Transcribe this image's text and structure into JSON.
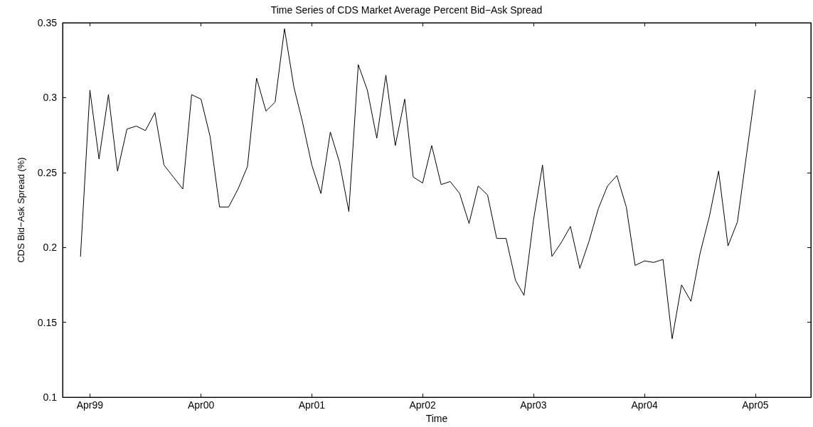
{
  "chart_data": {
    "type": "line",
    "title": "Time Series of CDS Market Average Percent Bid−Ask Spread",
    "xlabel": "Time",
    "ylabel": "CDS Bid−Ask Spread (%)",
    "x": [
      "1999-03",
      "1999-04",
      "1999-05",
      "1999-06",
      "1999-07",
      "1999-08",
      "1999-09",
      "1999-10",
      "1999-11",
      "1999-12",
      "2000-01",
      "2000-02",
      "2000-03",
      "2000-04",
      "2000-05",
      "2000-06",
      "2000-07",
      "2000-08",
      "2000-09",
      "2000-10",
      "2000-11",
      "2000-12",
      "2001-01",
      "2001-02",
      "2001-03",
      "2001-04",
      "2001-05",
      "2001-06",
      "2001-07",
      "2001-08",
      "2001-09",
      "2001-10",
      "2001-11",
      "2001-12",
      "2002-01",
      "2002-02",
      "2002-03",
      "2002-04",
      "2002-05",
      "2002-06",
      "2002-07",
      "2002-08",
      "2002-09",
      "2002-10",
      "2002-11",
      "2002-12",
      "2003-01",
      "2003-02",
      "2003-03",
      "2003-04",
      "2003-05",
      "2003-06",
      "2003-07",
      "2003-08",
      "2003-09",
      "2003-10",
      "2003-11",
      "2003-12",
      "2004-01",
      "2004-02",
      "2004-03",
      "2004-04",
      "2004-05",
      "2004-06",
      "2004-07",
      "2004-08",
      "2004-09",
      "2004-10",
      "2004-11",
      "2004-12",
      "2005-01",
      "2005-02",
      "2005-04"
    ],
    "series": [
      {
        "color": "#000000",
        "values": [
          0.194,
          0.305,
          0.259,
          0.302,
          0.251,
          0.279,
          0.281,
          0.278,
          0.29,
          0.255,
          0.247,
          0.239,
          0.302,
          0.299,
          0.274,
          0.227,
          0.227,
          0.239,
          0.254,
          0.313,
          0.291,
          0.297,
          0.346,
          0.307,
          0.284,
          0.255,
          0.236,
          0.277,
          0.257,
          0.224,
          0.322,
          0.305,
          0.273,
          0.315,
          0.268,
          0.299,
          0.247,
          0.243,
          0.268,
          0.242,
          0.244,
          0.236,
          0.216,
          0.241,
          0.235,
          0.206,
          0.206,
          0.178,
          0.168,
          0.218,
          0.255,
          0.194,
          0.203,
          0.214,
          0.186,
          0.204,
          0.226,
          0.241,
          0.248,
          0.227,
          0.188,
          0.191,
          0.19,
          0.192,
          0.139,
          0.175,
          0.164,
          0.196,
          0.221,
          0.251,
          0.201,
          0.217,
          0.305
        ]
      }
    ],
    "xlim": [
      "1999-01",
      "2005-10"
    ],
    "xticks": [
      {
        "value": "1999-04",
        "label": "Apr99"
      },
      {
        "value": "2000-04",
        "label": "Apr00"
      },
      {
        "value": "2001-04",
        "label": "Apr01"
      },
      {
        "value": "2002-04",
        "label": "Apr02"
      },
      {
        "value": "2003-04",
        "label": "Apr03"
      },
      {
        "value": "2004-04",
        "label": "Apr04"
      },
      {
        "value": "2005-04",
        "label": "Apr05"
      }
    ],
    "ylim": [
      0.1,
      0.35
    ],
    "yticks": [
      0.1,
      0.15,
      0.2,
      0.25,
      0.3,
      0.35
    ],
    "grid": false,
    "marker": "none",
    "line_style": "solid"
  }
}
